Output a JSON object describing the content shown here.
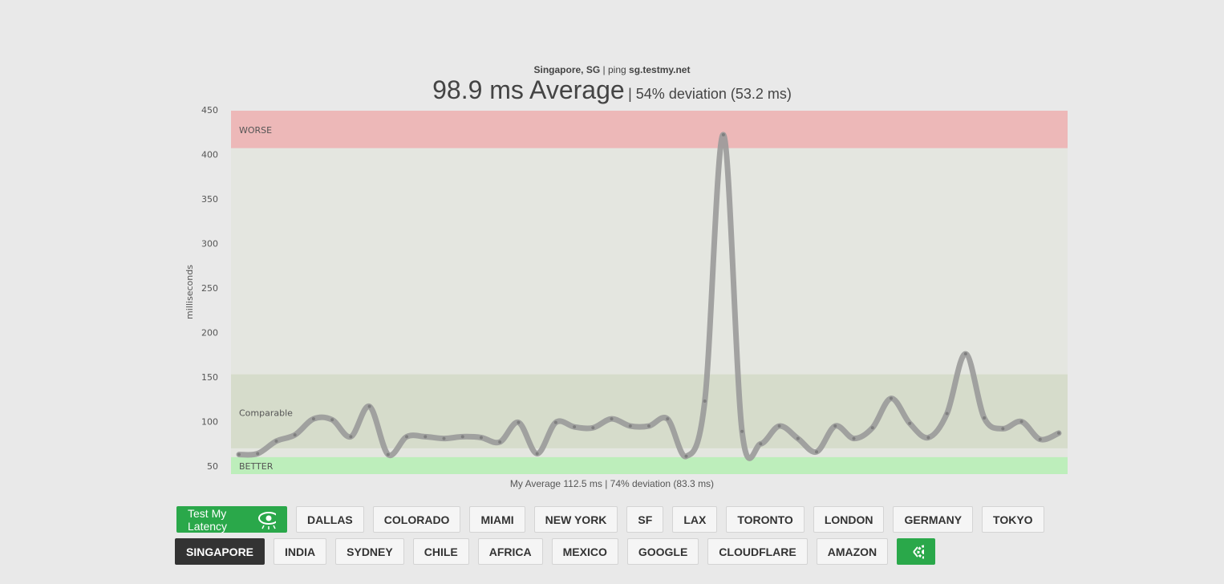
{
  "header": {
    "location": "Singapore, SG",
    "ping_label": "| ping",
    "host": "sg.testmy.net",
    "average": "98.9 ms Average",
    "deviation": "| 54% deviation (53.2 ms)"
  },
  "chart_data": {
    "type": "line",
    "y_label": "milliseconds",
    "footer": "My Average 112.5 ms | 74% deviation (83.3 ms)",
    "ylim": [
      42,
      450
    ],
    "yticks": [
      50,
      100,
      150,
      200,
      250,
      300,
      350,
      400,
      450
    ],
    "color": "#9a9a9a",
    "bands": [
      {
        "label": "WORSE",
        "from": 408,
        "to": 450,
        "color": "#edb8b8"
      },
      {
        "label": "Comparable",
        "from": 71,
        "to": 154,
        "color": "#d6dccb"
      },
      {
        "label": "BETTER",
        "from": 42,
        "to": 61,
        "color": "#bdeebb"
      }
    ],
    "values": [
      64,
      65,
      79,
      86,
      104,
      103,
      84,
      118,
      64,
      84,
      84,
      82,
      84,
      83,
      78,
      100,
      65,
      100,
      95,
      94,
      104,
      96,
      96,
      104,
      62,
      124,
      423,
      90,
      76,
      96,
      82,
      67,
      96,
      82,
      94,
      127,
      99,
      83,
      110,
      177,
      105,
      93,
      101,
      81,
      88
    ]
  },
  "controls": {
    "test_button": "Test My Latency",
    "active": "SINGAPORE",
    "server_rows": [
      [
        "DALLAS",
        "COLORADO",
        "MIAMI",
        "NEW YORK",
        "SF",
        "LAX",
        "TORONTO",
        "LONDON",
        "GERMANY",
        "TOKYO"
      ],
      [
        "SINGAPORE",
        "INDIA",
        "SYDNEY",
        "CHILE",
        "AFRICA",
        "MEXICO",
        "GOOGLE",
        "CLOUDFLARE",
        "AMAZON"
      ]
    ]
  }
}
